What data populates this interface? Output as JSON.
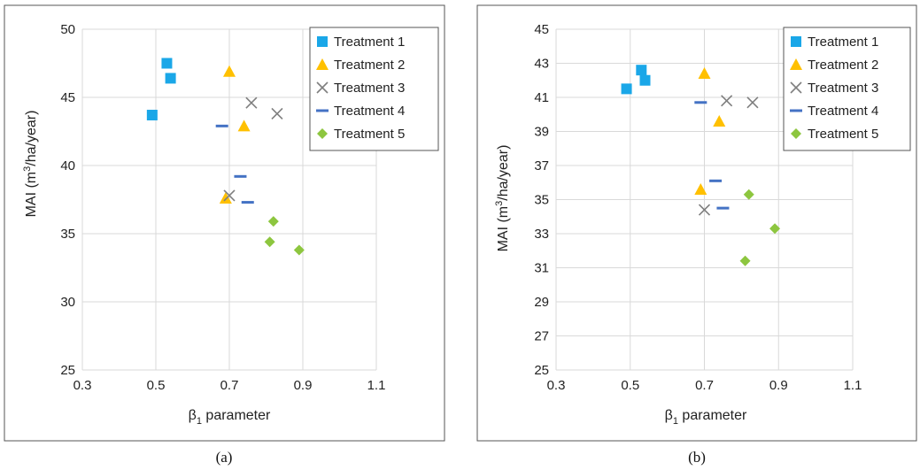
{
  "legend_labels": [
    "Treatment 1",
    "Treatment 2",
    "Treatment 3",
    "Treatment 4",
    "Treatment 5"
  ],
  "colors": {
    "Treatment 1": "#1AA7E8",
    "Treatment 2": "#FFC000",
    "Treatment 3": "#7F7F7F",
    "Treatment 4": "#4472C4",
    "Treatment 5": "#8DC63F"
  },
  "markers": {
    "Treatment 1": "square",
    "Treatment 2": "triangle",
    "Treatment 3": "x",
    "Treatment 4": "dash",
    "Treatment 5": "diamond"
  },
  "chart_data": [
    {
      "type": "scatter",
      "caption": "(a)",
      "xlabel": "β1 parameter",
      "ylabel": "MAI (m3/ha/year)",
      "xlim": [
        0.3,
        1.1
      ],
      "ylim": [
        25,
        50
      ],
      "xticks": [
        "0.3",
        "0.5",
        "0.7",
        "0.9",
        "1.1"
      ],
      "yticks": [
        "25",
        "30",
        "35",
        "40",
        "45",
        "50"
      ],
      "legend_position": "top-right",
      "series": [
        {
          "name": "Treatment 1",
          "points": [
            [
              0.49,
              43.7
            ],
            [
              0.53,
              47.5
            ],
            [
              0.54,
              46.4
            ]
          ]
        },
        {
          "name": "Treatment 2",
          "points": [
            [
              0.7,
              46.9
            ],
            [
              0.74,
              42.9
            ],
            [
              0.69,
              37.6
            ]
          ]
        },
        {
          "name": "Treatment 3",
          "points": [
            [
              0.76,
              44.6
            ],
            [
              0.83,
              43.8
            ],
            [
              0.7,
              37.8
            ]
          ]
        },
        {
          "name": "Treatment 4",
          "points": [
            [
              0.68,
              42.9
            ],
            [
              0.73,
              39.2
            ],
            [
              0.75,
              37.3
            ]
          ]
        },
        {
          "name": "Treatment 5",
          "points": [
            [
              0.82,
              35.9
            ],
            [
              0.81,
              34.4
            ],
            [
              0.89,
              33.8
            ]
          ]
        }
      ]
    },
    {
      "type": "scatter",
      "caption": "(b)",
      "xlabel": "β1 parameter",
      "ylabel": "MAI (m3/ha/year)",
      "xlim": [
        0.3,
        1.1
      ],
      "ylim": [
        25,
        45
      ],
      "xticks": [
        "0.3",
        "0.5",
        "0.7",
        "0.9",
        "1.1"
      ],
      "yticks": [
        "25",
        "27",
        "29",
        "31",
        "33",
        "35",
        "37",
        "39",
        "41",
        "43",
        "45"
      ],
      "legend_position": "top-right",
      "series": [
        {
          "name": "Treatment 1",
          "points": [
            [
              0.49,
              41.5
            ],
            [
              0.53,
              42.6
            ],
            [
              0.54,
              42.0
            ]
          ]
        },
        {
          "name": "Treatment 2",
          "points": [
            [
              0.7,
              42.4
            ],
            [
              0.74,
              39.6
            ],
            [
              0.69,
              35.6
            ]
          ]
        },
        {
          "name": "Treatment 3",
          "points": [
            [
              0.76,
              40.8
            ],
            [
              0.83,
              40.7
            ],
            [
              0.7,
              34.4
            ]
          ]
        },
        {
          "name": "Treatment 4",
          "points": [
            [
              0.69,
              40.7
            ],
            [
              0.73,
              36.1
            ],
            [
              0.75,
              34.5
            ]
          ]
        },
        {
          "name": "Treatment 5",
          "points": [
            [
              0.82,
              35.3
            ],
            [
              0.81,
              31.4
            ],
            [
              0.89,
              33.3
            ]
          ]
        }
      ]
    }
  ]
}
